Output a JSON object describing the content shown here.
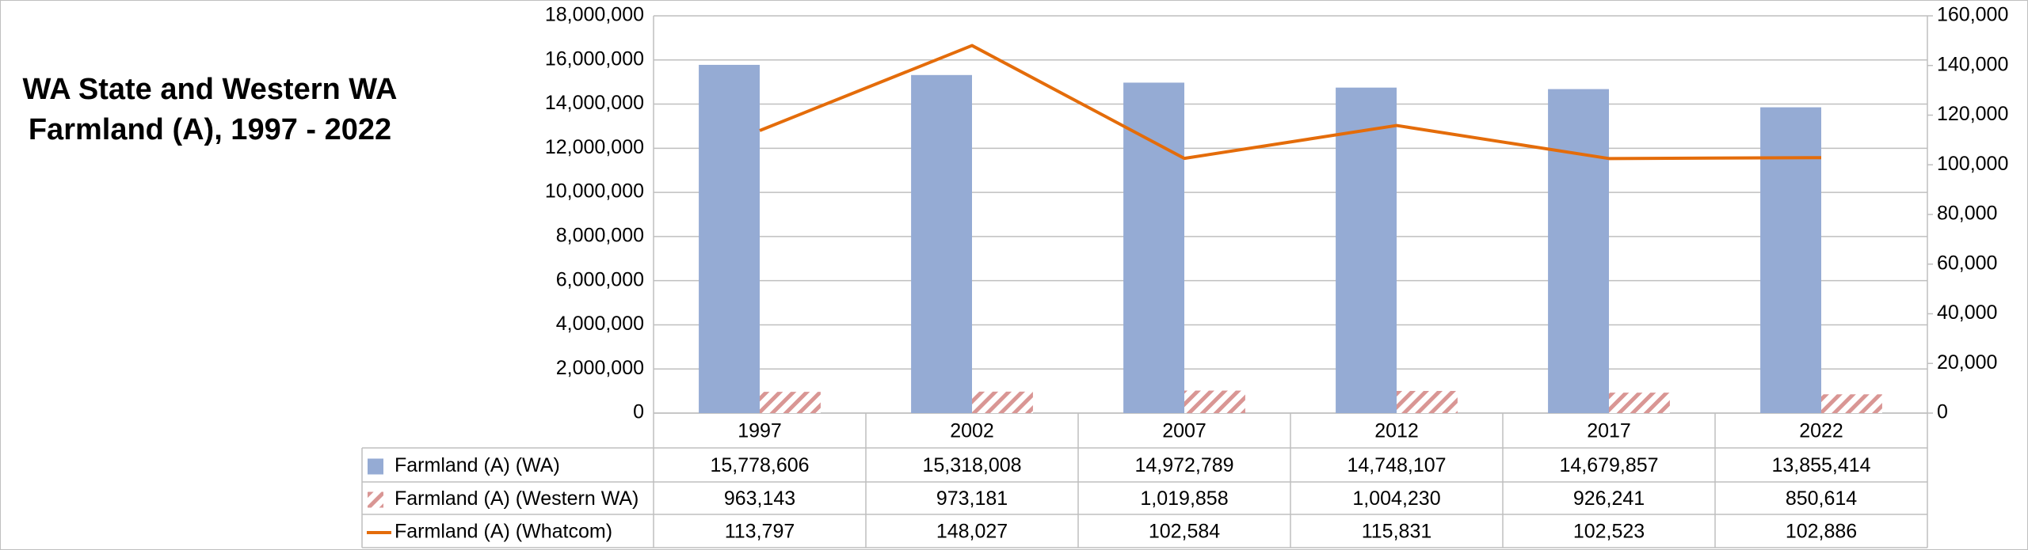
{
  "chart_data": {
    "type": "combo",
    "title": "WA State and Western WA Farmland (A), 1997 - 2022",
    "categories": [
      "1997",
      "2002",
      "2007",
      "2012",
      "2017",
      "2022"
    ],
    "series": [
      {
        "name": "Farmland (A) (WA)",
        "type": "bar",
        "color": "#95abd4",
        "values": [
          15778606,
          15318008,
          14972789,
          14748107,
          14679857,
          13855414
        ],
        "value_labels": [
          "15,778,606",
          "15,318,008",
          "14,972,789",
          "14,748,107",
          "14,679,857",
          "13,855,414"
        ]
      },
      {
        "name": "Farmland (A) (Western WA)",
        "type": "hatched-bar",
        "color": "#d99694",
        "values": [
          963143,
          973181,
          1019858,
          1004230,
          926241,
          850614
        ],
        "value_labels": [
          "963,143",
          "973,181",
          "1,019,858",
          "1,004,230",
          "926,241",
          "850,614"
        ]
      },
      {
        "name": "Farmland (A) (Whatcom)",
        "type": "line",
        "color": "#e46c0a",
        "axis": "y2",
        "values": [
          113797,
          148027,
          102584,
          115831,
          102523,
          102886
        ],
        "value_labels": [
          "113,797",
          "148,027",
          "102,584",
          "115,831",
          "102,523",
          "102,886"
        ]
      }
    ],
    "ylim": [
      0,
      18000000
    ],
    "yticks": [
      0,
      {
        "value": 2000000,
        "label": "2,000,000"
      },
      {
        "value": 4000000,
        "label": "4,000,000"
      },
      {
        "value": 6000000,
        "label": "6,000,000"
      },
      {
        "value": 8000000,
        "label": "8,000,000"
      },
      {
        "value": 10000000,
        "label": "10,000,000"
      },
      {
        "value": 12000000,
        "label": "12,000,000"
      },
      {
        "value": 14000000,
        "label": "14,000,000"
      },
      {
        "value": 16000000,
        "label": "16,000,000"
      },
      {
        "value": 18000000,
        "label": "18,000,000"
      }
    ],
    "y2lim": [
      0,
      160000
    ],
    "y2ticks": [
      0,
      {
        "value": 20000,
        "label": "20,000"
      },
      {
        "value": 40000,
        "label": "40,000"
      },
      {
        "value": 60000,
        "label": "60,000"
      },
      {
        "value": 80000,
        "label": "80,000"
      },
      {
        "value": 100000,
        "label": "100,000"
      },
      {
        "value": 120000,
        "label": "120,000"
      },
      {
        "value": 140000,
        "label": "140,000"
      },
      {
        "value": 160000,
        "label": "160,000"
      }
    ],
    "grid": true,
    "legend": "data-table"
  }
}
